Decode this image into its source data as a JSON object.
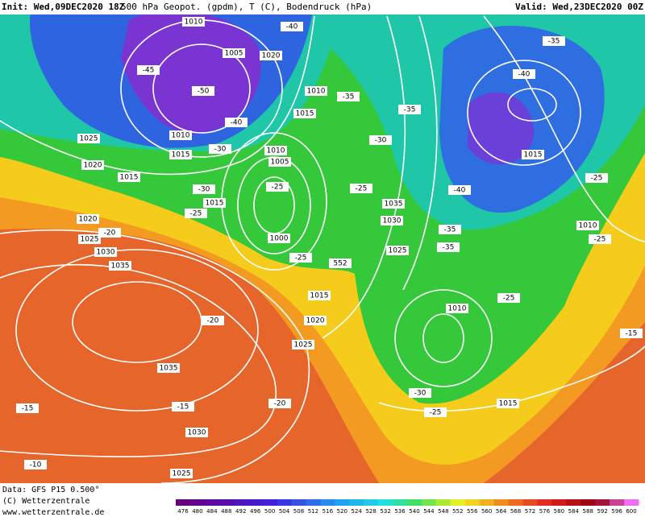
{
  "header": {
    "init": "Init: Wed,09DEC2020 18Z",
    "title": "500 hPa Geopot. (gpdm), T (C), Bodendruck (hPa)",
    "valid": "Valid: Wed,23DEC2020 00Z"
  },
  "footer": {
    "data": "Data: GFS P15 0.500°",
    "copyright": "(C) Wetterzentrale",
    "url": "www.wetterzentrale.de"
  },
  "colorbar": {
    "labels": [
      476,
      480,
      484,
      488,
      492,
      496,
      500,
      504,
      508,
      512,
      516,
      520,
      524,
      528,
      532,
      536,
      540,
      544,
      548,
      552,
      556,
      560,
      564,
      568,
      572,
      576,
      580,
      584,
      588,
      592,
      596,
      600
    ]
  },
  "map_labels": [
    "1010",
    "1005",
    "1020",
    "-40",
    "-45",
    "-50",
    "-40",
    "1010",
    "1015",
    "-30",
    "1025",
    "1020",
    "1015",
    "1010",
    "1015",
    "-35",
    "1010",
    "1005",
    "-25",
    "1015",
    "-30",
    "-25",
    "1000",
    "1020",
    "1025",
    "-20",
    "1030",
    "1035",
    "552",
    "-25",
    "1015",
    "1020",
    "-20",
    "1025",
    "1035",
    "-15",
    "-20",
    "-15",
    "1030",
    "-10",
    "1025",
    "-35",
    "-30",
    "-25",
    "1035",
    "1030",
    "1025",
    "-40",
    "-35",
    "-35",
    "1010",
    "-25",
    "1015",
    "-30",
    "-25",
    "-35",
    "-40",
    "1015",
    "-25",
    "1010",
    "-25",
    "-15"
  ]
}
